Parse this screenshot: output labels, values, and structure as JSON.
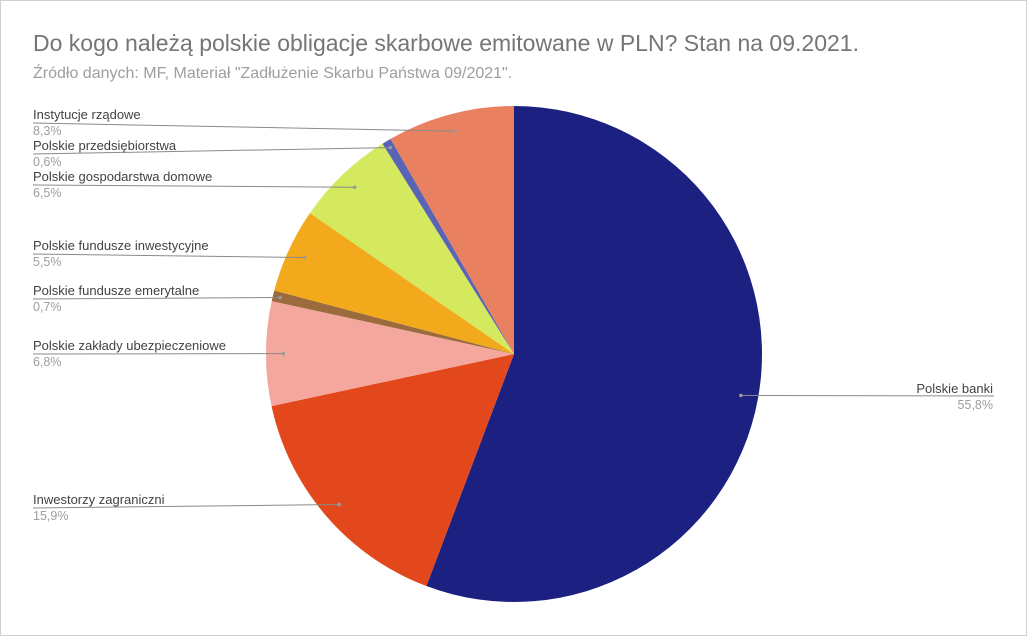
{
  "chart": {
    "title": "Do kogo należą polskie obligacje skarbowe emitowane w PLN? Stan na 09.2021.",
    "subtitle": "Źródło danych: MF, Materiał \"Zadłużenie Skarbu Państwa 09/2021\"."
  },
  "labels": [
    {
      "name": "Polskie banki",
      "pct": "55,8%"
    },
    {
      "name": "Inwestorzy zagraniczni",
      "pct": "15,9%"
    },
    {
      "name": "Polskie zakłady ubezpieczeniowe",
      "pct": "6,8%"
    },
    {
      "name": "Polskie fundusze emerytalne",
      "pct": "0,7%"
    },
    {
      "name": "Polskie fundusze inwestycyjne",
      "pct": "5,5%"
    },
    {
      "name": "Polskie gospodarstwa domowe",
      "pct": "6,5%"
    },
    {
      "name": "Polskie przedsiębiorstwa",
      "pct": "0,6%"
    },
    {
      "name": "Instytucje rządowe",
      "pct": "8,3%"
    }
  ],
  "chart_data": {
    "type": "pie",
    "title": "Do kogo należą polskie obligacje skarbowe emitowane w PLN? Stan na 09.2021.",
    "subtitle": "Źródło danych: MF, Materiał \"Zadłużenie Skarbu Państwa 09/2021\".",
    "categories": [
      "Polskie banki",
      "Inwestorzy zagraniczni",
      "Polskie zakłady ubezpieczeniowe",
      "Polskie fundusze emerytalne",
      "Polskie fundusze inwestycyjne",
      "Polskie gospodarstwa domowe",
      "Polskie przedsiębiorstwa",
      "Instytucje rządowe"
    ],
    "values": [
      55.8,
      15.9,
      6.8,
      0.7,
      5.5,
      6.5,
      0.6,
      8.3
    ],
    "colors": [
      "#1c2181",
      "#e2481b",
      "#f4a79d",
      "#9c6b3d",
      "#f2a91b",
      "#d4e95e",
      "#5964b5",
      "#e98060"
    ],
    "start_angle_deg": 0,
    "direction": "clockwise",
    "legend_position": "labeled"
  }
}
